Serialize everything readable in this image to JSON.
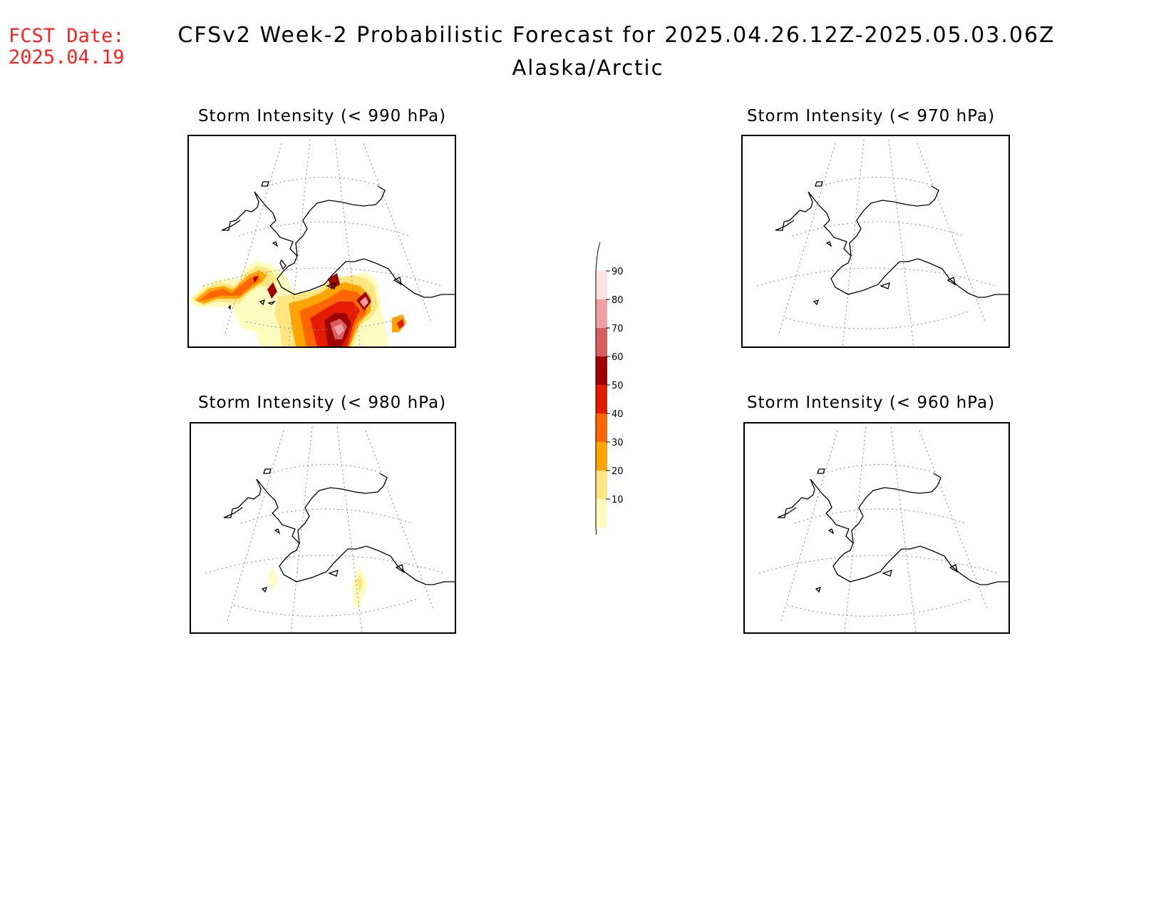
{
  "header": {
    "fcst_label": "FCST Date:",
    "fcst_date": "2025.04.19",
    "title": "CFSv2 Week-2 Probabilistic Forecast for 2025.04.26.12Z-2025.05.03.06Z",
    "subtitle": "Alaska/Arctic"
  },
  "panels": [
    {
      "title": "Storm Intensity (< 990 hPa)"
    },
    {
      "title": "Storm Intensity (< 970 hPa)"
    },
    {
      "title": "Storm Intensity (< 980 hPa)"
    },
    {
      "title": "Storm Intensity (< 960 hPa)"
    }
  ],
  "colorbar": {
    "levels": [
      "10",
      "20",
      "30",
      "40",
      "50",
      "60",
      "70",
      "80",
      "90"
    ],
    "colors": [
      "#fffcc0",
      "#ffe680",
      "#ffa500",
      "#ff6600",
      "#e51b00",
      "#a00000",
      "#d95f5f",
      "#f0a0a0",
      "#fde0e0"
    ]
  },
  "colors": {
    "fcst_text": "#ff2020",
    "coast": "#000000",
    "grid": "#888888"
  }
}
